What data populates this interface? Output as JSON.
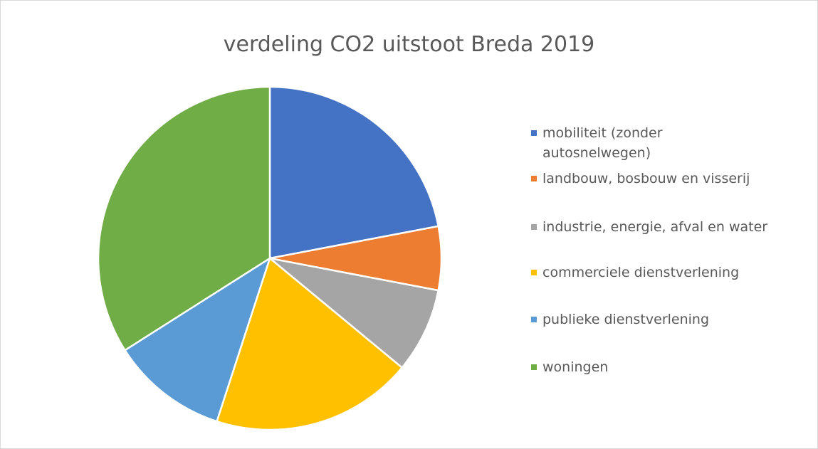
{
  "chart_data": {
    "type": "pie",
    "title": "verdeling CO2 uitstoot Breda 2019",
    "categories": [
      "mobiliteit (zonder autosnelwegen)",
      "landbouw, bosbouw en visserij",
      "industrie, energie, afval en water",
      "commerciele dienstverlening",
      "publieke dienstverlening",
      "woningen"
    ],
    "values": [
      22,
      6,
      8,
      19,
      11,
      34
    ],
    "colors": [
      "#4472c4",
      "#ed7d31",
      "#a5a5a5",
      "#ffc000",
      "#5b9bd5",
      "#70ad47"
    ],
    "legend": "right"
  }
}
